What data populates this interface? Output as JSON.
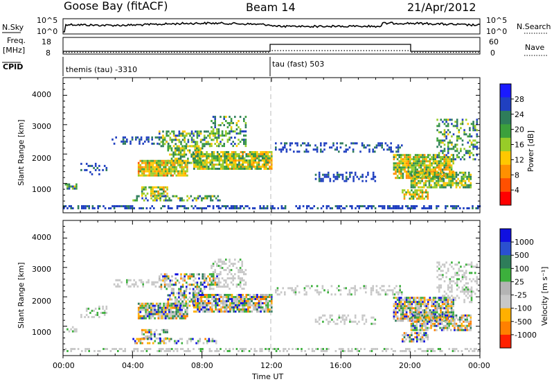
{
  "header": {
    "station": "Goose Bay (fitACF)",
    "beam": "Beam 14",
    "date": "21/Apr/2012"
  },
  "top_panels": {
    "nsky_label": "N.Sky",
    "nsearch_label": "N.Search",
    "nsky_ticks": [
      "10^5",
      "10^0"
    ],
    "nsearch_ticks": [
      "10^5",
      "10^0"
    ],
    "freq_label_1": "Freq.",
    "freq_label_2": "[MHz]",
    "freq_ticks": [
      "18",
      "8"
    ],
    "nave_label": "Nave",
    "nave_ticks": [
      "60",
      "0"
    ],
    "cpid_label": "CPID",
    "cpid_entries": [
      {
        "text": "themis (tau) -3310"
      },
      {
        "text": "tau (fast) 503"
      }
    ]
  },
  "chart_data": [
    {
      "type": "heatmap",
      "name": "Power",
      "ylabel": "Slant Range [km]",
      "y_ticks": [
        "4000",
        "3000",
        "2000",
        "1000"
      ],
      "colorbar_label": "Power [dB]",
      "colorbar_ticks": [
        "28",
        "24",
        "20",
        "16",
        "12",
        "8",
        "4"
      ],
      "colors": [
        "#1a1aff",
        "#2040c0",
        "#2e7d5a",
        "#3ca03c",
        "#98cc28",
        "#ffc800",
        "#ff9000",
        "#ff5000",
        "#ff0000"
      ]
    },
    {
      "type": "heatmap",
      "name": "Velocity",
      "ylabel": "Slant Range [km]",
      "y_ticks": [
        "4000",
        "3000",
        "2000",
        "1000"
      ],
      "colorbar_label": "Velocity [m s⁻¹]",
      "colorbar_ticks": [
        "1000",
        "500",
        "100",
        "25",
        "-25",
        "-100",
        "-500",
        "-1000"
      ],
      "colors": [
        "#1010e0",
        "#2a50d0",
        "#2e7d5a",
        "#3cb03c",
        "#b4b4b4",
        "#c8c8c8",
        "#ffb000",
        "#ff8000",
        "#ff2000"
      ]
    }
  ],
  "x_axis": {
    "ticks": [
      "00:00",
      "04:00",
      "08:00",
      "12:00",
      "16:00",
      "20:00",
      "00:00"
    ],
    "label": "Time UT"
  }
}
